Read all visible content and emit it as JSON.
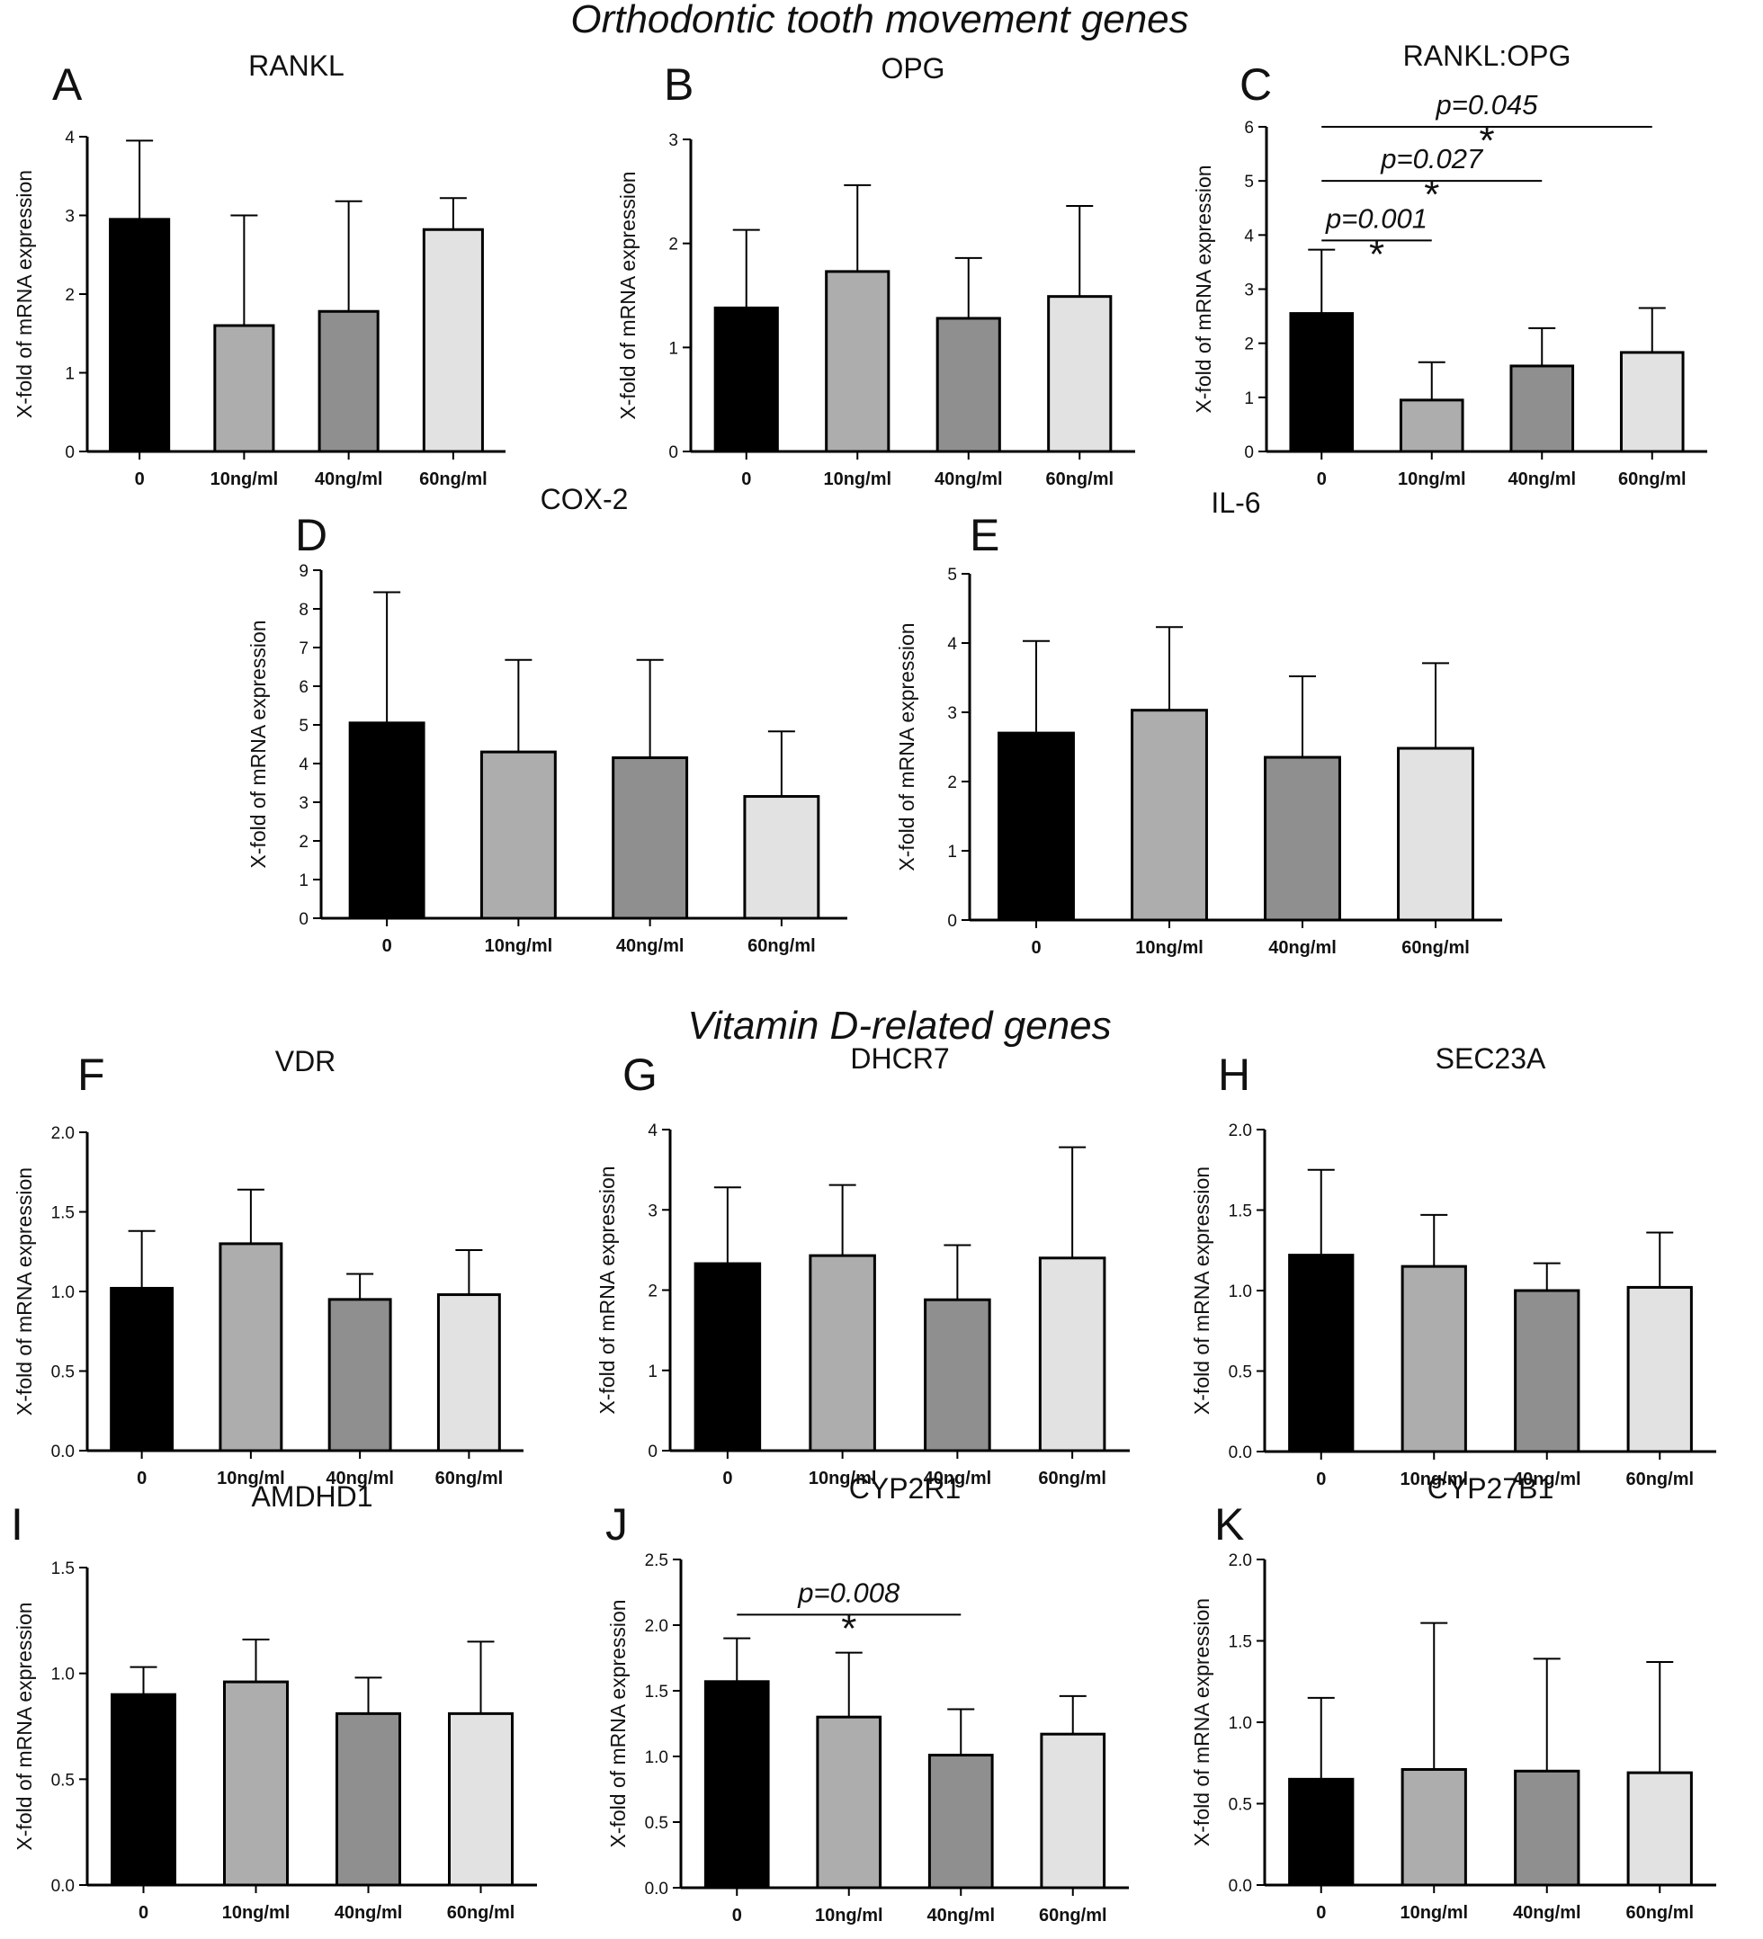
{
  "section_titles": {
    "top": "Orthodontic tooth movement genes",
    "bottom": "Vitamin D-related genes"
  },
  "common": {
    "ylabel": "X-fold of mRNA expression",
    "categories": [
      "0",
      "10ng/ml",
      "40ng/ml",
      "60ng/ml"
    ],
    "bar_colors": [
      "#000000",
      "#adadad",
      "#8f8f8f",
      "#e2e2e2"
    ]
  },
  "chart_data": [
    {
      "id": "A",
      "type": "bar",
      "title": "RANKL",
      "letter": "A",
      "categories": [
        "0",
        "10ng/ml",
        "40ng/ml",
        "60ng/ml"
      ],
      "values": [
        2.95,
        1.6,
        1.78,
        2.82
      ],
      "errors": [
        1.0,
        1.4,
        1.4,
        0.4
      ],
      "ylim": [
        0,
        4
      ],
      "yticks": [
        "0",
        "1",
        "2",
        "3",
        "4"
      ],
      "ylabel": "X-fold of mRNA expression",
      "significance": []
    },
    {
      "id": "B",
      "type": "bar",
      "title": "OPG",
      "letter": "B",
      "categories": [
        "0",
        "10ng/ml",
        "40ng/ml",
        "60ng/ml"
      ],
      "values": [
        1.38,
        1.73,
        1.28,
        1.49
      ],
      "errors": [
        0.75,
        0.83,
        0.58,
        0.87
      ],
      "ylim": [
        0,
        3
      ],
      "yticks": [
        "0",
        "1",
        "2",
        "3"
      ],
      "ylabel": "X-fold of mRNA expression",
      "significance": []
    },
    {
      "id": "C",
      "type": "bar",
      "title": "RANKL:OPG",
      "letter": "C",
      "categories": [
        "0",
        "10ng/ml",
        "40ng/ml",
        "60ng/ml"
      ],
      "values": [
        2.55,
        0.95,
        1.58,
        1.83
      ],
      "errors": [
        1.18,
        0.7,
        0.7,
        0.82
      ],
      "ylim": [
        0,
        6
      ],
      "yticks": [
        "0",
        "1",
        "2",
        "3",
        "4",
        "5",
        "6"
      ],
      "ylabel": "X-fold of mRNA expression",
      "significance": [
        {
          "from": 0,
          "to": 1,
          "y": 3.9,
          "label": "p=0.001",
          "star": "*"
        },
        {
          "from": 0,
          "to": 2,
          "y": 5.0,
          "label": "p=0.027",
          "star": "*"
        },
        {
          "from": 0,
          "to": 3,
          "y": 6.0,
          "label": "p=0.045",
          "star": "*"
        }
      ]
    },
    {
      "id": "D",
      "type": "bar",
      "title": "COX-2",
      "letter": "D",
      "categories": [
        "0",
        "10ng/ml",
        "40ng/ml",
        "60ng/ml"
      ],
      "values": [
        5.05,
        4.3,
        4.15,
        3.15
      ],
      "errors": [
        3.38,
        2.38,
        2.53,
        1.68
      ],
      "ylim": [
        0,
        9
      ],
      "yticks": [
        "0",
        "1",
        "2",
        "3",
        "4",
        "5",
        "6",
        "7",
        "8",
        "9"
      ],
      "ylabel": "X-fold of mRNA expression",
      "significance": []
    },
    {
      "id": "E",
      "type": "bar",
      "title": "IL-6",
      "letter": "E",
      "categories": [
        "0",
        "10ng/ml",
        "40ng/ml",
        "60ng/ml"
      ],
      "values": [
        2.7,
        3.03,
        2.35,
        2.48
      ],
      "errors": [
        1.33,
        1.2,
        1.17,
        1.23
      ],
      "ylim": [
        0,
        5
      ],
      "yticks": [
        "0",
        "1",
        "2",
        "3",
        "4",
        "5"
      ],
      "ylabel": "X-fold of mRNA expression",
      "significance": []
    },
    {
      "id": "F",
      "type": "bar",
      "title": "VDR",
      "letter": "F",
      "categories": [
        "0",
        "10ng/ml",
        "40ng/ml",
        "60ng/ml"
      ],
      "values": [
        1.02,
        1.3,
        0.95,
        0.98
      ],
      "errors": [
        0.36,
        0.34,
        0.16,
        0.28
      ],
      "ylim": [
        0,
        2.0
      ],
      "yticks": [
        "0.0",
        "0.5",
        "1.0",
        "1.5",
        "2.0"
      ],
      "ylabel": "X-fold of mRNA expression",
      "significance": []
    },
    {
      "id": "G",
      "type": "bar",
      "title": "DHCR7",
      "letter": "G",
      "categories": [
        "0",
        "10ng/ml",
        "40ng/ml",
        "60ng/ml"
      ],
      "values": [
        2.33,
        2.43,
        1.88,
        2.4
      ],
      "errors": [
        0.95,
        0.88,
        0.68,
        1.38
      ],
      "ylim": [
        0,
        4
      ],
      "yticks": [
        "0",
        "1",
        "2",
        "3",
        "4"
      ],
      "ylabel": "X-fold of mRNA expression",
      "significance": []
    },
    {
      "id": "H",
      "type": "bar",
      "title": "SEC23A",
      "letter": "H",
      "categories": [
        "0",
        "10ng/ml",
        "40ng/ml",
        "60ng/ml"
      ],
      "values": [
        1.22,
        1.15,
        1.0,
        1.02
      ],
      "errors": [
        0.53,
        0.32,
        0.17,
        0.34
      ],
      "ylim": [
        0,
        2.0
      ],
      "yticks": [
        "0.0",
        "0.5",
        "1.0",
        "1.5",
        "2.0"
      ],
      "ylabel": "X-fold of mRNA expression",
      "significance": []
    },
    {
      "id": "I",
      "type": "bar",
      "title": "AMDHD1",
      "letter": "I",
      "categories": [
        "0",
        "10ng/ml",
        "40ng/ml",
        "60ng/ml"
      ],
      "values": [
        0.9,
        0.96,
        0.81,
        0.81
      ],
      "errors": [
        0.13,
        0.2,
        0.17,
        0.34
      ],
      "ylim": [
        0,
        1.5
      ],
      "yticks": [
        "0.0",
        "0.5",
        "1.0",
        "1.5"
      ],
      "ylabel": "X-fold of mRNA expression",
      "significance": []
    },
    {
      "id": "J",
      "type": "bar",
      "title": "CYP2R1",
      "letter": "J",
      "categories": [
        "0",
        "10ng/ml",
        "40ng/ml",
        "60ng/ml"
      ],
      "values": [
        1.57,
        1.3,
        1.01,
        1.17
      ],
      "errors": [
        0.33,
        0.49,
        0.35,
        0.29
      ],
      "ylim": [
        0,
        2.5
      ],
      "yticks": [
        "0.0",
        "0.5",
        "1.0",
        "1.5",
        "2.0",
        "2.5"
      ],
      "ylabel": "X-fold of mRNA expression",
      "significance": [
        {
          "from": 0,
          "to": 2,
          "y": 2.08,
          "label": "p=0.008",
          "star": "*"
        }
      ]
    },
    {
      "id": "K",
      "type": "bar",
      "title": "CYP27B1",
      "letter": "K",
      "categories": [
        "0",
        "10ng/ml",
        "40ng/ml",
        "60ng/ml"
      ],
      "values": [
        0.65,
        0.71,
        0.7,
        0.69
      ],
      "errors": [
        0.5,
        0.9,
        0.69,
        0.68
      ],
      "ylim": [
        0,
        2.0
      ],
      "yticks": [
        "0.0",
        "0.5",
        "1.0",
        "1.5",
        "2.0"
      ],
      "ylabel": "X-fold of mRNA expression",
      "significance": []
    }
  ]
}
